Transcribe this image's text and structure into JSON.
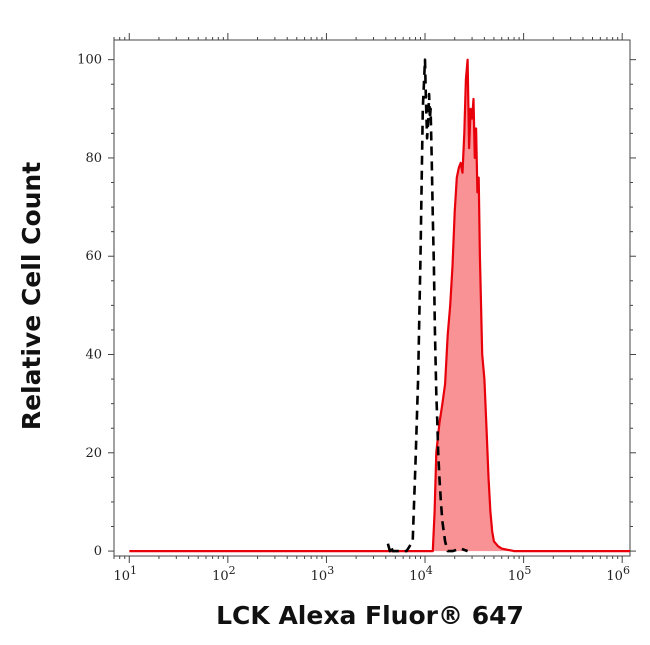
{
  "chart_data": {
    "type": "area",
    "xlabel": "LCK Alexa Fluor® 647",
    "ylabel": "Relative Cell Count",
    "xscale": "log",
    "xlim": [
      7,
      1200000
    ],
    "ylim": [
      -1,
      104
    ],
    "x_ticks": [
      10,
      100,
      1000,
      10000,
      100000,
      1000000
    ],
    "x_tick_labels": [
      {
        "base": "10",
        "exp": "1"
      },
      {
        "base": "10",
        "exp": "2"
      },
      {
        "base": "10",
        "exp": "3"
      },
      {
        "base": "10",
        "exp": "4"
      },
      {
        "base": "10",
        "exp": "5"
      },
      {
        "base": "10",
        "exp": "6"
      }
    ],
    "y_ticks": [
      0,
      20,
      40,
      60,
      80,
      100
    ],
    "y_tick_labels": [
      "0",
      "20",
      "40",
      "60",
      "80",
      "100"
    ],
    "grid": false,
    "legend": "none",
    "colors": {
      "stained_fill": "#f99294",
      "stained_line": "#e8000b",
      "control_line": "#000000"
    },
    "series": [
      {
        "style": "dashed-unfilled",
        "x": [
          4200,
          4400,
          4500,
          4700,
          5000,
          6500,
          7500,
          8000,
          8500,
          9000,
          9500,
          10000,
          10200,
          10500,
          10800,
          11000,
          11200,
          11400,
          11700,
          12000,
          12300,
          12600,
          13000,
          13300,
          13600,
          14000,
          14500,
          15000,
          16000,
          17000,
          19000,
          23000,
          27000
        ],
        "y": [
          1.5,
          0,
          1,
          0,
          0,
          0,
          2,
          18,
          35,
          60,
          90,
          100,
          92,
          84,
          88,
          93,
          88,
          90,
          80,
          68,
          58,
          45,
          32,
          27,
          20,
          15,
          10,
          6,
          2,
          0,
          0,
          0.5,
          0
        ]
      },
      {
        "style": "solid-filled",
        "x": [
          10,
          12000,
          12500,
          13000,
          14000,
          15000,
          16000,
          17000,
          18000,
          19000,
          20000,
          21000,
          22000,
          23000,
          24000,
          25000,
          26000,
          27000,
          28000,
          29000,
          30000,
          31000,
          32000,
          33000,
          34000,
          35000,
          36000,
          38000,
          40000,
          42000,
          44000,
          46000,
          48000,
          50000,
          55000,
          60000,
          80000,
          1200000
        ],
        "y": [
          0,
          0,
          8,
          20,
          26,
          30,
          34,
          44,
          50,
          58,
          69,
          76,
          78,
          79,
          77,
          85,
          96,
          100,
          82,
          90,
          88,
          92,
          80,
          86,
          73,
          76,
          60,
          40,
          35,
          25,
          15,
          8,
          4,
          2,
          1,
          0.5,
          0,
          0
        ]
      }
    ]
  }
}
